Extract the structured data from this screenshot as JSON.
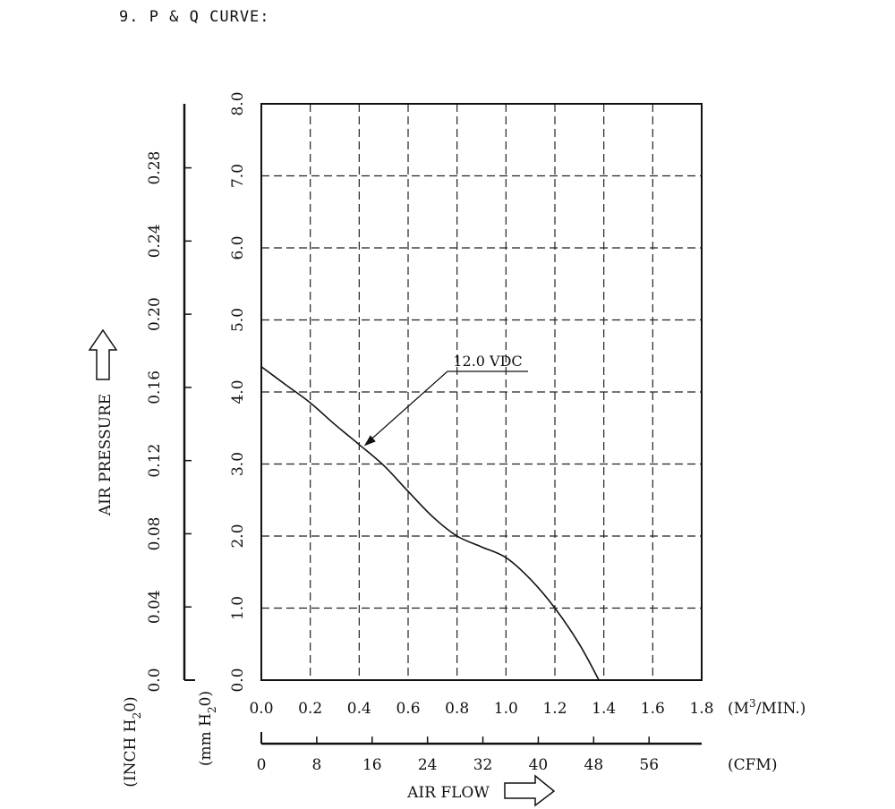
{
  "section_title": "9. P & Q CURVE:",
  "chart_data": {
    "type": "line",
    "title": "P & Q CURVE",
    "xlabel": "AIR FLOW",
    "ylabel": "AIR PRESSURE",
    "x_primary": {
      "unit_prefix": "(M",
      "unit_sup": "3",
      "unit_suffix": "/MIN.)",
      "ticks": [
        "0.0",
        "0.2",
        "0.4",
        "0.6",
        "0.8",
        "1.0",
        "1.2",
        "1.4",
        "1.6",
        "1.8"
      ],
      "range": [
        0,
        1.8
      ]
    },
    "x_secondary": {
      "unit": "(CFM)",
      "ticks": [
        "0",
        "8",
        "16",
        "24",
        "32",
        "40",
        "48",
        "56"
      ],
      "range": [
        0,
        63.6
      ]
    },
    "y_primary": {
      "unit_prefix": "(mm H",
      "unit_sub": "2",
      "unit_suffix": "0)",
      "ticks": [
        "0.0",
        "1.0",
        "2.0",
        "3.0",
        "4.0",
        "5.0",
        "6.0",
        "7.0",
        "8.0"
      ],
      "range": [
        0,
        8
      ]
    },
    "y_secondary": {
      "unit_prefix": "(INCH H",
      "unit_sub": "2",
      "unit_suffix": "0)",
      "ticks": [
        "0.0",
        "0.04",
        "0.08",
        "0.12",
        "0.16",
        "0.20",
        "0.24",
        "0.28"
      ],
      "range": [
        0,
        0.315
      ]
    },
    "grid": true,
    "series": [
      {
        "name": "12.0 VDC",
        "x": [
          0.0,
          0.1,
          0.2,
          0.3,
          0.4,
          0.5,
          0.6,
          0.7,
          0.8,
          0.9,
          1.0,
          1.1,
          1.2,
          1.3,
          1.38
        ],
        "y": [
          4.35,
          4.1,
          3.85,
          3.55,
          3.27,
          2.98,
          2.62,
          2.27,
          2.0,
          1.85,
          1.7,
          1.4,
          1.0,
          0.5,
          0.0
        ]
      }
    ],
    "annotation": {
      "text": "12.0 VDC",
      "point_x": 0.42,
      "point_y": 3.25
    }
  }
}
